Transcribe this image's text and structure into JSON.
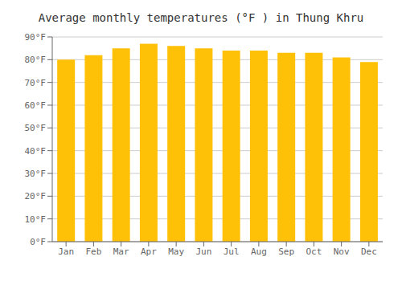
{
  "chart_data": {
    "type": "bar",
    "title": "Average monthly temperatures (°F ) in Thung Khru",
    "categories": [
      "Jan",
      "Feb",
      "Mar",
      "Apr",
      "May",
      "Jun",
      "Jul",
      "Aug",
      "Sep",
      "Oct",
      "Nov",
      "Dec"
    ],
    "values": [
      80,
      82,
      85,
      87,
      86,
      85,
      84,
      84,
      83,
      83,
      81,
      79
    ],
    "color": "#FFC107",
    "ylim": [
      0,
      90
    ],
    "yticks": [
      {
        "value": 0,
        "label": "0°F"
      },
      {
        "value": 10,
        "label": "10°F"
      },
      {
        "value": 20,
        "label": "20°F"
      },
      {
        "value": 30,
        "label": "30°F"
      },
      {
        "value": 40,
        "label": "40°F"
      },
      {
        "value": 50,
        "label": "50°F"
      },
      {
        "value": 60,
        "label": "60°F"
      },
      {
        "value": 70,
        "label": "70°F"
      },
      {
        "value": 80,
        "label": "80°F"
      },
      {
        "value": 90,
        "label": "90°F"
      }
    ],
    "grid": true
  }
}
